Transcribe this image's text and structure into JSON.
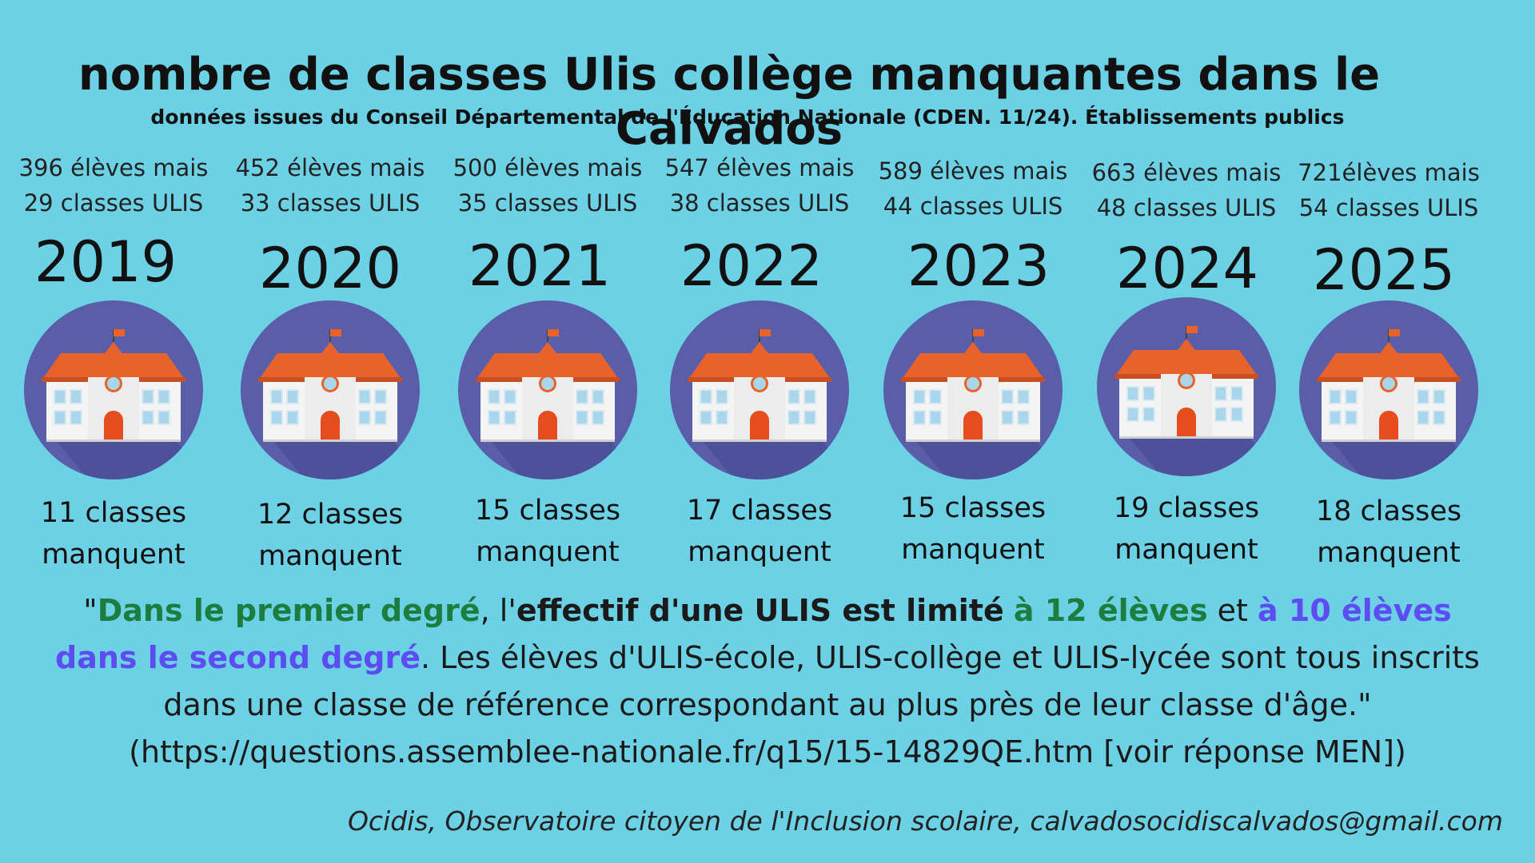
{
  "title": "nombre de classes Ulis collège manquantes dans le Calvados",
  "subtitle": "données issues du Conseil Départemental de l'Éducation Nationale (CDEN. 11/24). Établissements publics",
  "years": [
    {
      "year": "2019",
      "stats_line1": "396 élèves mais",
      "stats_line2": "29 classes ULIS",
      "missing_line1": "11 classes",
      "missing_line2": "manquent"
    },
    {
      "year": "2020",
      "stats_line1": "452 élèves mais",
      "stats_line2": "33 classes ULIS",
      "missing_line1": "12 classes",
      "missing_line2": "manquent"
    },
    {
      "year": "2021",
      "stats_line1": "500 élèves mais",
      "stats_line2": "35 classes ULIS",
      "missing_line1": "15 classes",
      "missing_line2": "manquent"
    },
    {
      "year": "2022",
      "stats_line1": "547 élèves mais",
      "stats_line2": "38 classes ULIS",
      "missing_line1": "17 classes",
      "missing_line2": "manquent"
    },
    {
      "year": "2023",
      "stats_line1": "589 élèves mais",
      "stats_line2": "44 classes ULIS",
      "missing_line1": "15 classes",
      "missing_line2": "manquent"
    },
    {
      "year": "2024",
      "stats_line1": "663 élèves mais",
      "stats_line2": "48 classes ULIS",
      "missing_line1": "19 classes",
      "missing_line2": "manquent"
    },
    {
      "year": "2025",
      "stats_line1": "721élèves mais",
      "stats_line2": "54 classes ULIS",
      "missing_line1": "18 classes",
      "missing_line2": "manquent"
    }
  ],
  "quote": {
    "open": "\"",
    "green1": "Dans le premier degré",
    "t1": ", l'",
    "bold1": "effectif d'une ULIS est limité",
    "t2": " ",
    "green2": "à 12 élèves",
    "t3": " et ",
    "purple1": "à 10 élèves dans le second degré",
    "t4": ". Les élèves d'ULIS-école, ULIS-collège et ULIS-lycée sont tous inscrits dans une classe de référence correspondant au plus près de leur classe d'âge.\"",
    "source": "(https://questions.assemblee-nationale.fr/q15/15-14829QE.htm [voir réponse MEN])"
  },
  "footer": "Ocidis, Observatoire citoyen de l'Inclusion scolaire, calvadosocidiscalvados@gmail.com",
  "colors": {
    "background": "#6dd1e6",
    "circle": "#5a5ea9",
    "roof": "#e8622c",
    "building": "#f4f4f4",
    "green": "#1b7d3e",
    "purple": "#5b4df2"
  },
  "icon": "school-building-icon"
}
